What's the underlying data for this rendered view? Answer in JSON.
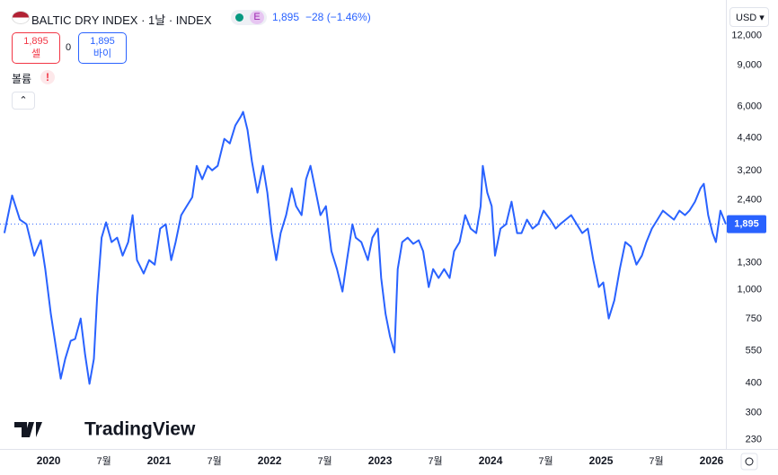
{
  "header": {
    "symbol": "BALTIC DRY INDEX · 1날 · INDEX",
    "badge": "E",
    "price": "1,895",
    "change": "−28 (−1.46%)",
    "sell_price": "1,895",
    "sell": "셀",
    "spread": "0",
    "buy_price": "1,895",
    "buy": "바이",
    "volume": "볼륨",
    "volume_alert": "!",
    "currency": "USD",
    "logo": "TradingView"
  },
  "chart_data": {
    "type": "line",
    "log_scale": true,
    "grid": true,
    "last_label": "1,895",
    "xlim": [
      2019.56,
      2026.13
    ],
    "xticks": [
      2020,
      {
        "value": 2020.5,
        "label": "7월"
      },
      2021,
      {
        "value": 2021.5,
        "label": "7월"
      },
      2022,
      {
        "value": 2022.5,
        "label": "7월"
      },
      2023,
      {
        "value": 2023.5,
        "label": "7월"
      },
      2024,
      {
        "value": 2024.5,
        "label": "7월"
      },
      2025,
      {
        "value": 2025.5,
        "label": "7월"
      },
      2026
    ],
    "ylim": [
      210,
      17000
    ],
    "yticks": [
      {
        "value": 12000,
        "label": "12,000"
      },
      {
        "value": 9000,
        "label": "9,000"
      },
      {
        "value": 6000,
        "label": "6,000"
      },
      {
        "value": 4400,
        "label": "4,400"
      },
      {
        "value": 3200,
        "label": "3,200"
      },
      {
        "value": 2400,
        "label": "2,400"
      },
      {
        "value": 1300,
        "label": "1,300"
      },
      {
        "value": 1000,
        "label": "1,000"
      },
      750,
      550,
      400,
      300,
      230
    ],
    "x": [
      2019.6,
      2019.67,
      2019.74,
      2019.8,
      2019.87,
      2019.93,
      2019.97,
      2020.02,
      2020.07,
      2020.11,
      2020.15,
      2020.2,
      2020.24,
      2020.29,
      2020.33,
      2020.37,
      2020.41,
      2020.44,
      2020.48,
      2020.52,
      2020.57,
      2020.62,
      2020.67,
      2020.72,
      2020.76,
      2020.8,
      2020.86,
      2020.91,
      2020.96,
      2021.01,
      2021.06,
      2021.11,
      2021.15,
      2021.2,
      2021.25,
      2021.3,
      2021.34,
      2021.39,
      2021.44,
      2021.48,
      2021.53,
      2021.59,
      2021.64,
      2021.69,
      2021.74,
      2021.76,
      2021.8,
      2021.84,
      2021.89,
      2021.94,
      2021.98,
      2022.02,
      2022.06,
      2022.1,
      2022.15,
      2022.2,
      2022.24,
      2022.29,
      2022.33,
      2022.37,
      2022.42,
      2022.46,
      2022.51,
      2022.56,
      2022.61,
      2022.66,
      2022.7,
      2022.75,
      2022.78,
      2022.83,
      2022.89,
      2022.93,
      2022.98,
      2023.01,
      2023.05,
      2023.09,
      2023.13,
      2023.16,
      2023.2,
      2023.25,
      2023.3,
      2023.35,
      2023.39,
      2023.44,
      2023.48,
      2023.53,
      2023.58,
      2023.63,
      2023.67,
      2023.72,
      2023.77,
      2023.82,
      2023.87,
      2023.91,
      2023.93,
      2023.97,
      2024.01,
      2024.04,
      2024.09,
      2024.14,
      2024.19,
      2024.24,
      2024.28,
      2024.33,
      2024.38,
      2024.43,
      2024.48,
      2024.54,
      2024.59,
      2024.63,
      2024.68,
      2024.73,
      2024.78,
      2024.83,
      2024.88,
      2024.93,
      2024.98,
      2025.02,
      2025.07,
      2025.12,
      2025.17,
      2025.22,
      2025.27,
      2025.32,
      2025.37,
      2025.41,
      2025.46,
      2025.51,
      2025.56,
      2025.61,
      2025.66,
      2025.71,
      2025.76,
      2025.8,
      2025.85,
      2025.9,
      2025.93,
      2025.97,
      2026.01,
      2026.04,
      2026.08,
      2026.13
    ],
    "series": [
      {
        "color": "#2962ff",
        "values": [
          1736,
          2510,
          1981,
          1895,
          1393,
          1618,
          1221,
          787,
          554,
          418,
          507,
          605,
          616,
          753,
          530,
          397,
          507,
          938,
          1661,
          1929,
          1590,
          1661,
          1393,
          1590,
          2070,
          1333,
          1169,
          1333,
          1276,
          1814,
          1895,
          1333,
          1590,
          2070,
          2260,
          2467,
          3355,
          2941,
          3355,
          3211,
          3355,
          4368,
          4179,
          4984,
          5440,
          5685,
          4769,
          3505,
          2578,
          3355,
          2578,
          1736,
          1333,
          1736,
          2070,
          2693,
          2260,
          2070,
          2941,
          3355,
          2578,
          2070,
          2260,
          1456,
          1221,
          980,
          1333,
          1895,
          1661,
          1590,
          1333,
          1661,
          1814,
          1119,
          787,
          632,
          540,
          1221,
          1590,
          1661,
          1563,
          1618,
          1456,
          1024,
          1221,
          1119,
          1221,
          1119,
          1456,
          1590,
          2070,
          1814,
          1736,
          2260,
          3355,
          2578,
          2260,
          1393,
          1814,
          1895,
          2361,
          1736,
          1736,
          1981,
          1814,
          1895,
          2163,
          1981,
          1814,
          1895,
          1981,
          2070,
          1895,
          1736,
          1814,
          1333,
          1024,
          1071,
          753,
          898,
          1221,
          1590,
          1521,
          1276,
          1393,
          1590,
          1814,
          1981,
          2163,
          2070,
          1981,
          2163,
          2070,
          2163,
          2361,
          2693,
          2814,
          2070,
          1736,
          1590,
          2163,
          1895
        ]
      }
    ]
  }
}
